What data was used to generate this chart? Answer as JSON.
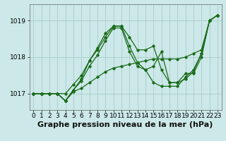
{
  "background_color": "#cce8e8",
  "grid_color": "#aacccc",
  "line_color": "#1a6b1a",
  "title": "Graphe pression niveau de la mer (hPa)",
  "xlim": [
    -0.5,
    23.5
  ],
  "ylim": [
    1016.55,
    1019.45
  ],
  "yticks": [
    1017,
    1018,
    1019
  ],
  "xticks": [
    0,
    1,
    2,
    3,
    4,
    5,
    6,
    7,
    8,
    9,
    10,
    11,
    12,
    13,
    14,
    15,
    16,
    17,
    18,
    19,
    20,
    21,
    22,
    23
  ],
  "series": [
    [
      1017.0,
      1017.0,
      1017.0,
      1017.0,
      1016.8,
      1017.05,
      1017.15,
      1017.3,
      1017.45,
      1017.6,
      1017.7,
      1017.75,
      1017.8,
      1017.85,
      1017.9,
      1017.95,
      1017.95,
      1017.95,
      1017.95,
      1018.0,
      1018.1,
      1018.2,
      1019.0,
      1019.15
    ],
    [
      1017.0,
      1017.0,
      1017.0,
      1017.0,
      1016.8,
      1017.1,
      1017.35,
      1017.75,
      1018.05,
      1018.45,
      1018.8,
      1018.8,
      1018.15,
      1017.75,
      1017.65,
      1017.75,
      1018.15,
      1017.3,
      1017.3,
      1017.55,
      1017.55,
      1018.0,
      1019.0,
      1019.15
    ],
    [
      1017.0,
      1017.0,
      1017.0,
      1017.0,
      1016.8,
      1017.1,
      1017.4,
      1017.9,
      1018.25,
      1018.65,
      1018.85,
      1018.85,
      1018.3,
      1017.85,
      1017.65,
      1017.3,
      1017.2,
      1017.2,
      1017.2,
      1017.45,
      1017.65,
      1018.1,
      1019.0,
      1019.15
    ],
    [
      1017.0,
      1017.0,
      1017.0,
      1017.0,
      1017.0,
      1017.25,
      1017.5,
      1017.9,
      1018.2,
      1018.55,
      1018.85,
      1018.85,
      1018.55,
      1018.2,
      1018.2,
      1018.3,
      1017.65,
      1017.3,
      1017.3,
      1017.4,
      1017.6,
      1018.1,
      1019.0,
      1019.15
    ]
  ],
  "title_fontsize": 8,
  "tick_fontsize": 6.5,
  "figsize": [
    3.2,
    2.0
  ],
  "dpi": 100
}
